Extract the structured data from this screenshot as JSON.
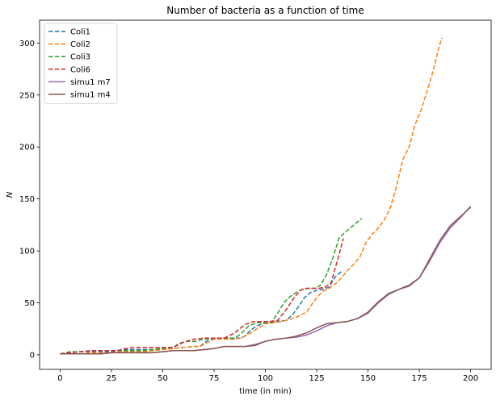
{
  "chart_data": {
    "type": "line",
    "title": "Number of bacteria as a function of time",
    "xlabel": "time (in min)",
    "ylabel": "N",
    "xlim": [
      -10,
      210
    ],
    "ylim": [
      -14,
      322
    ],
    "xticks": [
      0,
      25,
      50,
      75,
      100,
      125,
      150,
      175,
      200
    ],
    "yticks": [
      0,
      50,
      100,
      150,
      200,
      250,
      300
    ],
    "grid": false,
    "legend_position": "top-left",
    "series": [
      {
        "name": "Coli1",
        "color": "#1f77b4",
        "style": "dashed",
        "x": [
          0,
          5,
          10,
          15,
          20,
          25,
          30,
          35,
          40,
          45,
          50,
          55,
          60,
          65,
          68,
          72,
          75,
          80,
          85,
          88,
          90,
          93,
          96,
          100,
          105,
          110,
          113,
          116,
          119,
          122,
          125,
          128,
          131,
          134,
          137
        ],
        "y": [
          1,
          2,
          3,
          3,
          3,
          3,
          5,
          5,
          5,
          5,
          6,
          6,
          7,
          8,
          8,
          14,
          16,
          16,
          16,
          16,
          18,
          24,
          28,
          31,
          32,
          33,
          38,
          46,
          55,
          60,
          62,
          63,
          65,
          75,
          80
        ]
      },
      {
        "name": "Coli2",
        "color": "#ff7f0e",
        "style": "dashed",
        "x": [
          0,
          5,
          10,
          15,
          20,
          25,
          30,
          35,
          40,
          45,
          50,
          55,
          60,
          65,
          68,
          72,
          75,
          80,
          85,
          88,
          92,
          96,
          100,
          105,
          110,
          115,
          120,
          125,
          128,
          131,
          134,
          137,
          140,
          143,
          146,
          149,
          152,
          155,
          158,
          161,
          164,
          167,
          170,
          173,
          176,
          179,
          182,
          184,
          186
        ],
        "y": [
          1,
          1,
          1,
          2,
          2,
          2,
          3,
          3,
          3,
          4,
          5,
          6,
          7,
          8,
          8,
          12,
          15,
          15,
          15,
          16,
          20,
          25,
          30,
          31,
          33,
          36,
          41,
          55,
          61,
          64,
          68,
          74,
          81,
          87,
          94,
          108,
          116,
          122,
          130,
          142,
          163,
          188,
          200,
          222,
          236,
          255,
          275,
          292,
          305
        ]
      },
      {
        "name": "Coli3",
        "color": "#2ca02c",
        "style": "dashed",
        "x": [
          0,
          5,
          10,
          15,
          20,
          25,
          30,
          35,
          40,
          45,
          50,
          55,
          58,
          62,
          66,
          70,
          75,
          80,
          85,
          88,
          92,
          96,
          100,
          103,
          106,
          109,
          112,
          115,
          118,
          121,
          124,
          127,
          130,
          133,
          136,
          139,
          142,
          145,
          147
        ],
        "y": [
          1,
          3,
          3,
          4,
          4,
          4,
          4,
          4,
          4,
          5,
          6,
          7,
          11,
          13,
          13,
          15,
          16,
          16,
          16,
          20,
          28,
          31,
          31,
          31,
          40,
          50,
          56,
          60,
          63,
          64,
          64,
          67,
          78,
          94,
          113,
          118,
          123,
          128,
          131
        ]
      },
      {
        "name": "Coli6",
        "color": "#d62728",
        "style": "dashed",
        "x": [
          0,
          5,
          10,
          15,
          20,
          25,
          28,
          32,
          36,
          40,
          45,
          50,
          55,
          60,
          65,
          70,
          75,
          80,
          85,
          90,
          94,
          98,
          102,
          106,
          110,
          114,
          117,
          120,
          123,
          126,
          129,
          132,
          135,
          138
        ],
        "y": [
          1,
          2,
          3,
          4,
          4,
          4,
          4,
          6,
          7,
          7,
          7,
          7,
          7,
          12,
          15,
          16,
          16,
          16,
          21,
          29,
          32,
          32,
          32,
          33,
          43,
          55,
          62,
          64,
          64,
          64,
          65,
          69,
          90,
          112
        ]
      },
      {
        "name": "simu1 m7",
        "color": "#9467bd",
        "style": "solid",
        "x": [
          0,
          10,
          20,
          25,
          30,
          40,
          45,
          50,
          55,
          60,
          65,
          70,
          75,
          80,
          85,
          90,
          95,
          100,
          105,
          110,
          115,
          120,
          125,
          130,
          135,
          140,
          145,
          150,
          155,
          160,
          165,
          170,
          175,
          180,
          185,
          190,
          195,
          200
        ],
        "y": [
          1,
          1,
          1,
          2,
          2,
          2,
          2,
          3,
          4,
          4,
          4,
          5,
          6,
          8,
          8,
          8,
          10,
          13,
          15,
          16,
          17,
          19,
          23,
          28,
          31,
          32,
          35,
          40,
          50,
          58,
          63,
          66,
          74,
          90,
          108,
          122,
          132,
          143
        ]
      },
      {
        "name": "simu1 m4",
        "color": "#8c564b",
        "style": "solid",
        "x": [
          0,
          10,
          20,
          25,
          30,
          40,
          45,
          50,
          55,
          60,
          65,
          70,
          75,
          80,
          85,
          90,
          95,
          100,
          105,
          110,
          115,
          120,
          125,
          130,
          135,
          140,
          145,
          150,
          155,
          160,
          165,
          170,
          175,
          180,
          185,
          190,
          195,
          200
        ],
        "y": [
          1,
          1,
          1,
          2,
          2,
          2,
          2,
          3,
          4,
          4,
          4,
          5,
          6,
          8,
          8,
          8,
          9,
          13,
          15,
          16,
          18,
          21,
          26,
          30,
          31,
          32,
          35,
          41,
          51,
          59,
          63,
          67,
          74,
          92,
          110,
          124,
          133,
          142
        ]
      }
    ]
  }
}
